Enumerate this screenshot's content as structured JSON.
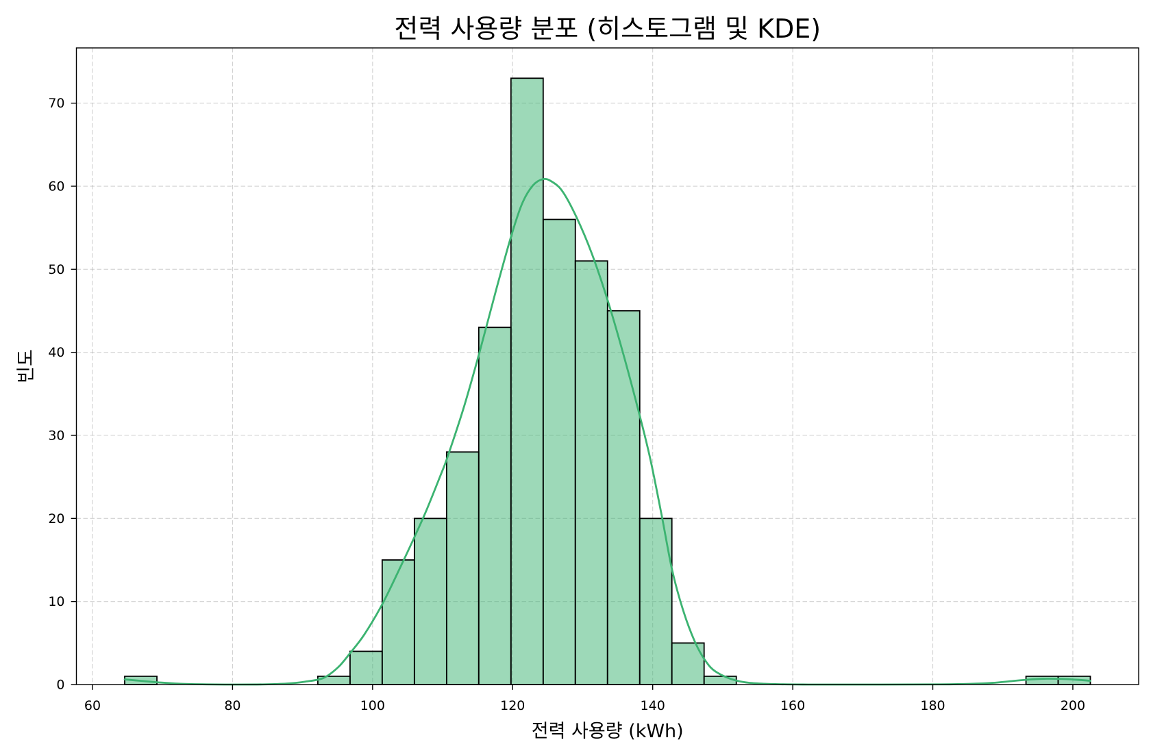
{
  "chart_data": {
    "type": "bar",
    "title": "전력 사용량 분포 (히스토그램 및 KDE)",
    "xlabel": "전력 사용량 (kWh)",
    "ylabel": "빈도",
    "xlim": [
      57.7,
      209.4
    ],
    "ylim": [
      0,
      76.65
    ],
    "xticks": [
      60,
      80,
      100,
      120,
      140,
      160,
      180,
      200
    ],
    "yticks": [
      0,
      10,
      20,
      30,
      40,
      50,
      60,
      70
    ],
    "grid": true,
    "bins": {
      "edges": [
        64.6,
        69.2,
        73.79,
        78.39,
        82.99,
        87.58,
        92.18,
        96.78,
        101.37,
        105.97,
        110.57,
        115.16,
        119.76,
        124.36,
        128.95,
        133.55,
        138.15,
        142.74,
        147.34,
        151.94,
        156.53,
        161.13,
        165.73,
        170.32,
        174.92,
        179.52,
        184.11,
        188.71,
        193.31,
        197.9,
        202.5
      ],
      "counts": [
        1,
        0,
        0,
        0,
        0,
        0,
        1,
        4,
        15,
        20,
        28,
        43,
        73,
        56,
        51,
        45,
        20,
        5,
        1,
        0,
        0,
        0,
        0,
        0,
        0,
        0,
        0,
        0,
        1,
        1
      ]
    },
    "kde": {
      "x": [
        64.6,
        66.8,
        69.4,
        72.6,
        76.3,
        80.5,
        84.6,
        87.8,
        90.4,
        93.0,
        95.1,
        96.8,
        98.8,
        101.4,
        104.0,
        106.0,
        107.7,
        109.8,
        110.7,
        113.0,
        115.3,
        117.7,
        119.9,
        121.4,
        122.9,
        124.3,
        125.5,
        127.1,
        129.1,
        131.3,
        133.7,
        136.0,
        138.2,
        139.7,
        141.3,
        142.8,
        144.4,
        146.0,
        147.5,
        149.1,
        152.1,
        156.0,
        162.2,
        172.7,
        181.1,
        185.3,
        188.5,
        191.1,
        193.7,
        196.3,
        198.9,
        201.0,
        202.5
      ],
      "y": [
        0.62,
        0.45,
        0.26,
        0.09,
        0.02,
        0.0,
        0.02,
        0.12,
        0.35,
        0.8,
        2.1,
        3.8,
        6.0,
        9.7,
        14.2,
        17.8,
        21.0,
        25.4,
        27.4,
        33.3,
        40.1,
        47.7,
        54.3,
        58.0,
        60.1,
        60.85,
        60.6,
        59.4,
        56.3,
        51.9,
        45.9,
        39.2,
        32.2,
        27.0,
        20.3,
        13.7,
        8.8,
        5.2,
        2.9,
        1.5,
        0.44,
        0.09,
        0.0,
        0.0,
        0.02,
        0.08,
        0.2,
        0.4,
        0.6,
        0.7,
        0.66,
        0.55,
        0.45
      ]
    },
    "colors": {
      "bar_fill": "#3cb371",
      "bar_edge": "#000000",
      "kde_line": "#3cb371",
      "grid": "#b0b0b0",
      "axes": "#000000"
    }
  }
}
